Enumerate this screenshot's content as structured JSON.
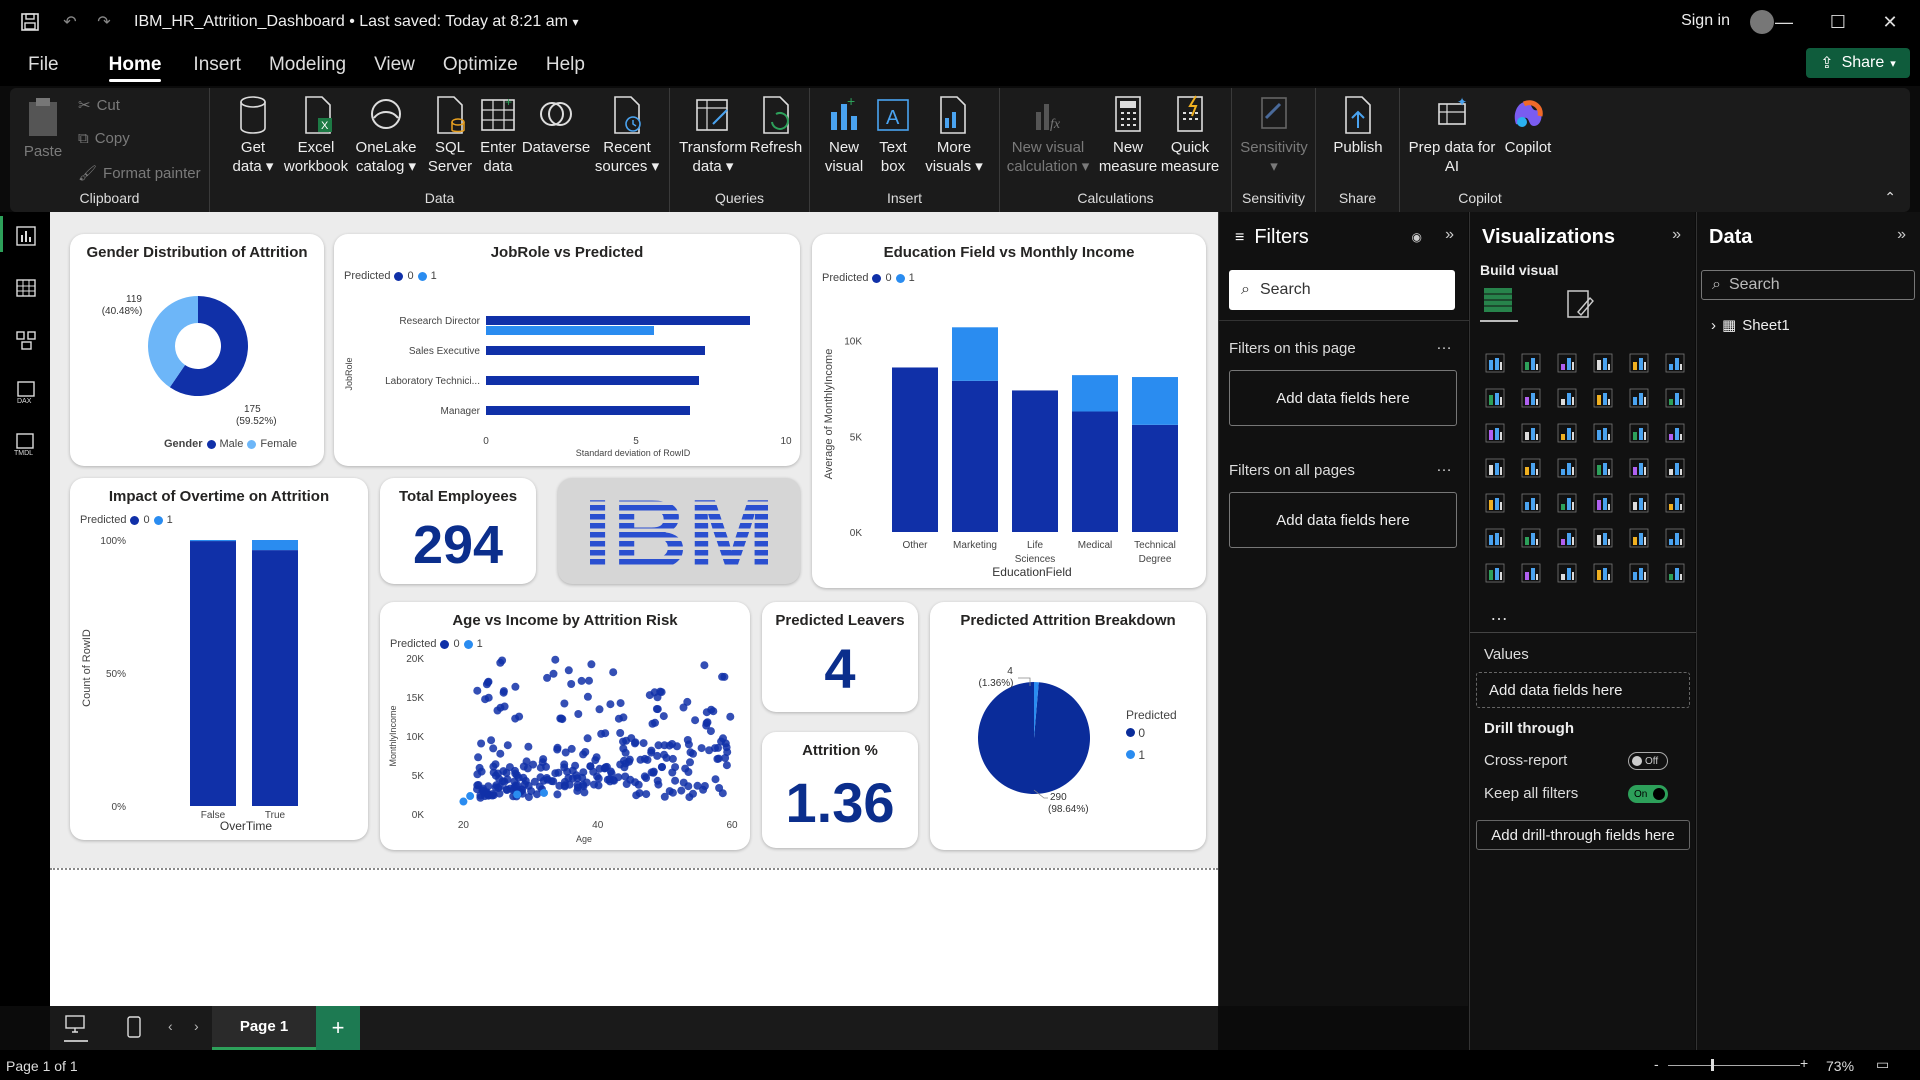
{
  "window": {
    "title": "IBM_HR_Attrition_Dashboard",
    "saved": "Last saved: Today at 8:21 am",
    "signin": "Sign in"
  },
  "menu": {
    "items": [
      "File",
      "Home",
      "Insert",
      "Modeling",
      "View",
      "Optimize",
      "Help"
    ],
    "active": "Home",
    "share": "Share"
  },
  "ribbon": {
    "clipboard": {
      "paste": "Paste",
      "cut": "Cut",
      "copy": "Copy",
      "format_painter": "Format painter",
      "label": "Clipboard"
    },
    "data": {
      "get_data": [
        "Get",
        "data"
      ],
      "excel": [
        "Excel",
        "workbook"
      ],
      "onelake": [
        "OneLake",
        "catalog"
      ],
      "sql": [
        "SQL",
        "Server"
      ],
      "enter": [
        "Enter",
        "data"
      ],
      "dataverse": "Dataverse",
      "recent": [
        "Recent",
        "sources"
      ],
      "label": "Data"
    },
    "queries": {
      "transform": [
        "Transform",
        "data"
      ],
      "refresh": "Refresh",
      "label": "Queries"
    },
    "insert": {
      "new_visual": [
        "New",
        "visual"
      ],
      "text_box": [
        "Text",
        "box"
      ],
      "more_visuals": [
        "More",
        "visuals"
      ],
      "label": "Insert"
    },
    "calculations": {
      "new_visual_calc": [
        "New visual",
        "calculation"
      ],
      "new_measure": [
        "New",
        "measure"
      ],
      "quick_measure": [
        "Quick",
        "measure"
      ],
      "label": "Calculations"
    },
    "sensitivity": {
      "btn": "Sensitivity",
      "label": "Sensitivity"
    },
    "share": {
      "publish": "Publish",
      "label": "Share"
    },
    "copilot": {
      "prep": [
        "Prep data for",
        "AI"
      ],
      "copilot": "Copilot",
      "label": "Copilot"
    }
  },
  "charts": {
    "gender": {
      "title": "Gender Distribution of Attrition",
      "legend_title": "Gender",
      "legend": [
        "Male",
        "Female"
      ],
      "label_female": "119",
      "label_female_pct": "(40.48%)",
      "label_male": "175",
      "label_male_pct": "(59.52%)"
    },
    "jobrole": {
      "title": "JobRole vs Predicted",
      "legend_title": "Predicted",
      "legend": [
        "0",
        "1"
      ],
      "ylabel": "JobRole",
      "xlabel": "Standard deviation of RowID"
    },
    "education": {
      "title": "Education Field vs Monthly Income",
      "legend_title": "Predicted",
      "legend": [
        "0",
        "1"
      ],
      "ylabel": "Average of MonthlyIncome",
      "xlabel": "EducationField"
    },
    "overtime": {
      "title": "Impact of Overtime on Attrition",
      "legend_title": "Predicted",
      "legend": [
        "0",
        "1"
      ],
      "ylabel": "Count of RowID",
      "xlabel": "OverTime"
    },
    "scatter": {
      "title": "Age vs Income by Attrition Risk",
      "legend_title": "Predicted",
      "legend": [
        "0",
        "1"
      ],
      "ylabel": "MonthlyIncome",
      "xlabel": "Age"
    },
    "pie": {
      "title": "Predicted Attrition Breakdown",
      "legend_title": "Predicted",
      "legend": [
        "0",
        "1"
      ],
      "label_1": "4",
      "label_1_pct": "(1.36%)",
      "label_0": "290",
      "label_0_pct": "(98.64%)"
    }
  },
  "kpis": {
    "total_employees": {
      "title": "Total Employees",
      "value": "294"
    },
    "predicted_leavers": {
      "title": "Predicted Leavers",
      "value": "4"
    },
    "attrition": {
      "title": "Attrition %",
      "value": "1.36"
    }
  },
  "logo": "IBM",
  "chart_data": [
    {
      "type": "pie",
      "title": "Gender Distribution of Attrition",
      "categories": [
        "Male",
        "Female"
      ],
      "values": [
        175,
        119
      ],
      "percent": [
        59.52,
        40.48
      ],
      "colors": [
        "#1030a8",
        "#6db6f8"
      ]
    },
    {
      "type": "bar",
      "orientation": "horizontal",
      "title": "JobRole vs Predicted",
      "categories": [
        "Research Director",
        "Sales Executive",
        "Laboratory Technici...",
        "Manager"
      ],
      "series": [
        {
          "name": "0",
          "values": [
            8.8,
            7.3,
            7.1,
            6.8
          ]
        },
        {
          "name": "1",
          "values": [
            5.6,
            null,
            null,
            null
          ]
        }
      ],
      "xlim": [
        0,
        10
      ],
      "xticks": [
        "0",
        "5",
        "10"
      ],
      "xlabel": "Standard deviation of RowID",
      "ylabel": "JobRole"
    },
    {
      "type": "bar",
      "stacked": true,
      "title": "Education Field vs Monthly Income",
      "categories": [
        "Other",
        "Marketing",
        "Life Sciences",
        "Medical",
        "Technical Degree"
      ],
      "series": [
        {
          "name": "0",
          "values": [
            8600,
            7900,
            7400,
            6300,
            5600
          ]
        },
        {
          "name": "1",
          "values": [
            0,
            2800,
            0,
            1900,
            2500
          ]
        }
      ],
      "ylim": [
        0,
        11500
      ],
      "yticks": [
        "0K",
        "5K",
        "10K"
      ],
      "xlabel": "EducationField",
      "ylabel": "Average of MonthlyIncome"
    },
    {
      "type": "bar",
      "stacked": true,
      "title": "Impact of Overtime on Attrition",
      "categories": [
        "False",
        "True"
      ],
      "series": [
        {
          "name": "0",
          "values": [
            99.6,
            96.2
          ]
        },
        {
          "name": "1",
          "values": [
            0.4,
            3.8
          ]
        }
      ],
      "ylim": [
        0,
        100
      ],
      "yticks": [
        "0%",
        "50%",
        "100%"
      ],
      "xlabel": "OverTime",
      "ylabel": "Count of RowID"
    },
    {
      "type": "scatter",
      "title": "Age vs Income by Attrition Risk",
      "xlim": [
        18,
        60
      ],
      "ylim": [
        0,
        20000
      ],
      "xticks": [
        "20",
        "40",
        "60"
      ],
      "yticks": [
        "0K",
        "5K",
        "10K",
        "15K",
        "20K"
      ],
      "xlabel": "Age",
      "ylabel": "MonthlyIncome",
      "series": [
        {
          "name": "1",
          "points": [
            [
              20,
              1600
            ],
            [
              21,
              2300
            ],
            [
              28,
              2500
            ],
            [
              32,
              2700
            ]
          ]
        }
      ]
    },
    {
      "type": "pie",
      "title": "Predicted Attrition Breakdown",
      "categories": [
        "0",
        "1"
      ],
      "values": [
        290,
        4
      ],
      "percent": [
        98.64,
        1.36
      ],
      "colors": [
        "#0a2c9a",
        "#2a8cf0"
      ]
    }
  ],
  "filters": {
    "title": "Filters",
    "search": "Search",
    "on_page": "Filters on this page",
    "on_all": "Filters on all pages",
    "add": "Add data fields here"
  },
  "viz": {
    "title": "Visualizations",
    "build": "Build visual",
    "values": "Values",
    "add_values": "Add data fields here",
    "drill": "Drill through",
    "cross": "Cross-report",
    "cross_state": "Off",
    "keep": "Keep all filters",
    "keep_state": "On",
    "add_drill": "Add drill-through fields here"
  },
  "data": {
    "title": "Data",
    "search": "Search",
    "table": "Sheet1"
  },
  "pages": {
    "tab": "Page 1",
    "status": "Page 1 of 1",
    "zoom": "73%"
  },
  "colors": {
    "dark_blue": "#1030a8",
    "light_blue": "#2a8cf0",
    "kpi": "#0b2e8c",
    "share": "#0f5c3c"
  }
}
